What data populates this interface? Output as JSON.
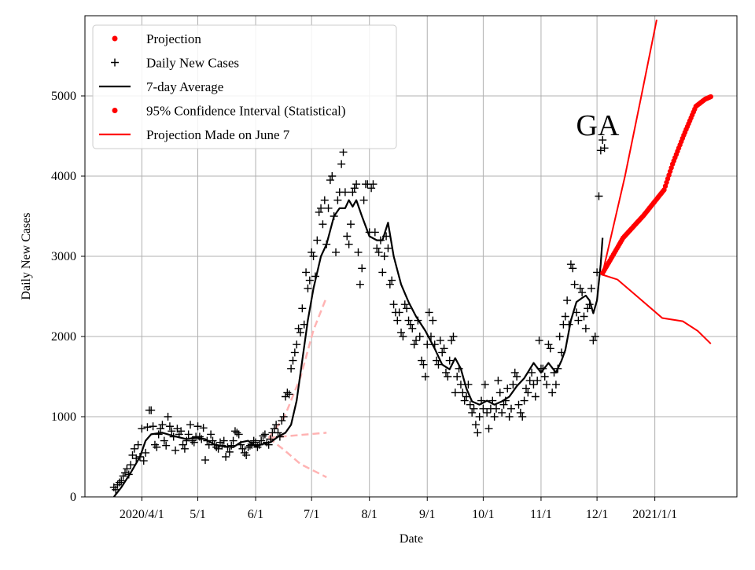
{
  "chart_data": {
    "type": "line",
    "title": "",
    "annotation": "GA",
    "xlabel": "Date",
    "ylabel": "Daily New Cases",
    "x_units": "days since 2020-03-01",
    "xlim": [
      0.5,
      350
    ],
    "ylim": [
      0,
      6000
    ],
    "grid": true,
    "legend_placement": "top-left",
    "x_ticks": [
      {
        "day": 31,
        "label": "2020/4/1"
      },
      {
        "day": 61,
        "label": "5/1"
      },
      {
        "day": 92,
        "label": "6/1"
      },
      {
        "day": 122,
        "label": "7/1"
      },
      {
        "day": 153,
        "label": "8/1"
      },
      {
        "day": 184,
        "label": "9/1"
      },
      {
        "day": 214,
        "label": "10/1"
      },
      {
        "day": 245,
        "label": "11/1"
      },
      {
        "day": 275,
        "label": "12/1"
      },
      {
        "day": 306,
        "label": "2021/1/1"
      }
    ],
    "y_ticks": [
      {
        "value": 0,
        "label": "0"
      },
      {
        "value": 1000,
        "label": "1000"
      },
      {
        "value": 2000,
        "label": "2000"
      },
      {
        "value": 3000,
        "label": "3000"
      },
      {
        "value": 4000,
        "label": "4000"
      },
      {
        "value": 5000,
        "label": "5000"
      }
    ],
    "legend": [
      {
        "label": "Projection",
        "marker": "dot",
        "color": "#ff0000"
      },
      {
        "label": "Daily New Cases",
        "marker": "plus",
        "color": "#000000"
      },
      {
        "label": "7-day Average",
        "marker": "line",
        "color": "#000000"
      },
      {
        "label": "95% Confidence Interval (Statistical)",
        "marker": "dot",
        "color": "#ff0000"
      },
      {
        "label": "Projection Made on June 7",
        "marker": "line",
        "color": "#ff0000"
      }
    ],
    "daily_new_cases": {
      "start_day": 16,
      "values": [
        120,
        90,
        150,
        180,
        200,
        260,
        300,
        350,
        280,
        400,
        520,
        600,
        480,
        650,
        500,
        850,
        450,
        550,
        870,
        1080,
        1080,
        880,
        650,
        620,
        780,
        850,
        900,
        700,
        640,
        1000,
        880,
        820,
        750,
        580,
        850,
        780,
        820,
        650,
        600,
        700,
        780,
        900,
        700,
        680,
        750,
        880,
        750,
        720,
        860,
        460,
        700,
        650,
        780,
        700,
        650,
        620,
        600,
        680,
        640,
        700,
        500,
        620,
        560,
        640,
        700,
        820,
        800,
        780,
        650,
        600,
        550,
        520,
        620,
        640,
        650,
        700,
        680,
        620,
        650,
        700,
        760,
        780,
        680,
        650,
        720,
        800,
        850,
        900,
        800,
        750,
        950,
        1000,
        1250,
        1300,
        1280,
        1600,
        1700,
        1800,
        1900,
        2100,
        2050,
        2350,
        2150,
        2800,
        2600,
        2700,
        3050,
        3000,
        2750,
        3200,
        3550,
        3600,
        3400,
        3700,
        3150,
        3600,
        3950,
        4000,
        3500,
        3050,
        3700,
        3800,
        4150,
        4300,
        3800,
        3250,
        3150,
        3400,
        3800,
        3850,
        3900,
        3050,
        2650,
        2850,
        3700,
        3900,
        3900,
        3300,
        3850,
        3900,
        3300,
        3100,
        3050,
        3200,
        2800,
        3000,
        3250,
        3100,
        2650,
        2700,
        2400,
        2300,
        2200,
        2300,
        2050,
        2000,
        2400,
        2350,
        2200,
        2150,
        2100,
        1900,
        1950,
        2200,
        2000,
        1700,
        1650,
        1500,
        1900,
        2300,
        2000,
        2200,
        1900,
        1700,
        1650,
        1950,
        1800,
        1850,
        1550,
        1500,
        1700,
        1950,
        2000,
        1300,
        1500,
        1600,
        1400,
        1300,
        1200,
        1250,
        1400,
        1150,
        1050,
        1100,
        900,
        800,
        1000,
        1200,
        1100,
        1400,
        1050,
        850,
        1100,
        1200,
        1000,
        1100,
        1450,
        1300,
        1050,
        1150,
        1200,
        1350,
        1000,
        1100,
        1400,
        1550,
        1500,
        1150,
        1050,
        1000,
        1200,
        1350,
        1300,
        1450,
        1550,
        1400,
        1250,
        1450,
        1950,
        1600,
        1600,
        1500,
        1400,
        1900,
        1850,
        1300,
        1550,
        1400,
        1600,
        2000,
        1800,
        2150,
        2250,
        2450,
        2150,
        2900,
        2850,
        2650,
        2300,
        2200,
        2600,
        2550,
        2250,
        2100,
        2350,
        2400,
        2600,
        1950,
        2000,
        2800,
        3750,
        4320,
        4450,
        4350
      ]
    },
    "seven_day_average": [
      [
        16,
        0
      ],
      [
        20,
        120
      ],
      [
        25,
        300
      ],
      [
        30,
        500
      ],
      [
        33,
        700
      ],
      [
        36,
        780
      ],
      [
        42,
        800
      ],
      [
        48,
        760
      ],
      [
        55,
        720
      ],
      [
        60,
        740
      ],
      [
        65,
        720
      ],
      [
        70,
        650
      ],
      [
        75,
        630
      ],
      [
        80,
        620
      ],
      [
        84,
        680
      ],
      [
        88,
        700
      ],
      [
        92,
        630
      ],
      [
        96,
        660
      ],
      [
        100,
        680
      ],
      [
        104,
        750
      ],
      [
        108,
        800
      ],
      [
        111,
        900
      ],
      [
        114,
        1200
      ],
      [
        117,
        1700
      ],
      [
        120,
        2200
      ],
      [
        123,
        2600
      ],
      [
        127,
        3000
      ],
      [
        130,
        3150
      ],
      [
        134,
        3500
      ],
      [
        137,
        3600
      ],
      [
        140,
        3600
      ],
      [
        142,
        3700
      ],
      [
        144,
        3620
      ],
      [
        146,
        3700
      ],
      [
        149,
        3500
      ],
      [
        153,
        3250
      ],
      [
        157,
        3200
      ],
      [
        160,
        3200
      ],
      [
        163,
        3420
      ],
      [
        166,
        3000
      ],
      [
        170,
        2650
      ],
      [
        174,
        2430
      ],
      [
        178,
        2250
      ],
      [
        183,
        2070
      ],
      [
        188,
        1850
      ],
      [
        192,
        1650
      ],
      [
        196,
        1590
      ],
      [
        199,
        1730
      ],
      [
        202,
        1600
      ],
      [
        205,
        1350
      ],
      [
        208,
        1190
      ],
      [
        212,
        1150
      ],
      [
        216,
        1200
      ],
      [
        220,
        1150
      ],
      [
        224,
        1190
      ],
      [
        228,
        1250
      ],
      [
        232,
        1380
      ],
      [
        236,
        1480
      ],
      [
        241,
        1670
      ],
      [
        245,
        1550
      ],
      [
        249,
        1670
      ],
      [
        253,
        1550
      ],
      [
        256,
        1700
      ],
      [
        258,
        1830
      ],
      [
        261,
        2200
      ],
      [
        264,
        2430
      ],
      [
        267,
        2480
      ],
      [
        269,
        2510
      ],
      [
        271,
        2450
      ],
      [
        273,
        2290
      ],
      [
        275,
        2450
      ],
      [
        277,
        2900
      ],
      [
        278,
        3230
      ]
    ],
    "projection": [
      [
        278,
        2790
      ],
      [
        289,
        3230
      ],
      [
        300,
        3510
      ],
      [
        311,
        3830
      ],
      [
        315.5,
        4150
      ],
      [
        321.5,
        4510
      ],
      [
        328,
        4870
      ],
      [
        333,
        4960
      ],
      [
        336,
        4990
      ]
    ],
    "ci_upper": [
      [
        278,
        2790
      ],
      [
        290,
        4000
      ],
      [
        298.7,
        4990
      ],
      [
        307,
        5950
      ]
    ],
    "ci_lower": [
      [
        278,
        2770
      ],
      [
        286,
        2710
      ],
      [
        297,
        2490
      ],
      [
        310,
        2230
      ],
      [
        321,
        2190
      ],
      [
        329,
        2070
      ],
      [
        336,
        1910
      ]
    ],
    "june7_projection": {
      "upper": [
        [
          99,
          735
        ],
        [
          107.5,
          1000
        ],
        [
          116,
          1490
        ],
        [
          123,
          2080
        ],
        [
          130,
          2490
        ]
      ],
      "middle": [
        [
          99,
          735
        ],
        [
          107.5,
          755
        ],
        [
          130,
          800
        ]
      ],
      "lower": [
        [
          99,
          735
        ],
        [
          107.5,
          580
        ],
        [
          116,
          410
        ],
        [
          130,
          245
        ]
      ]
    }
  }
}
